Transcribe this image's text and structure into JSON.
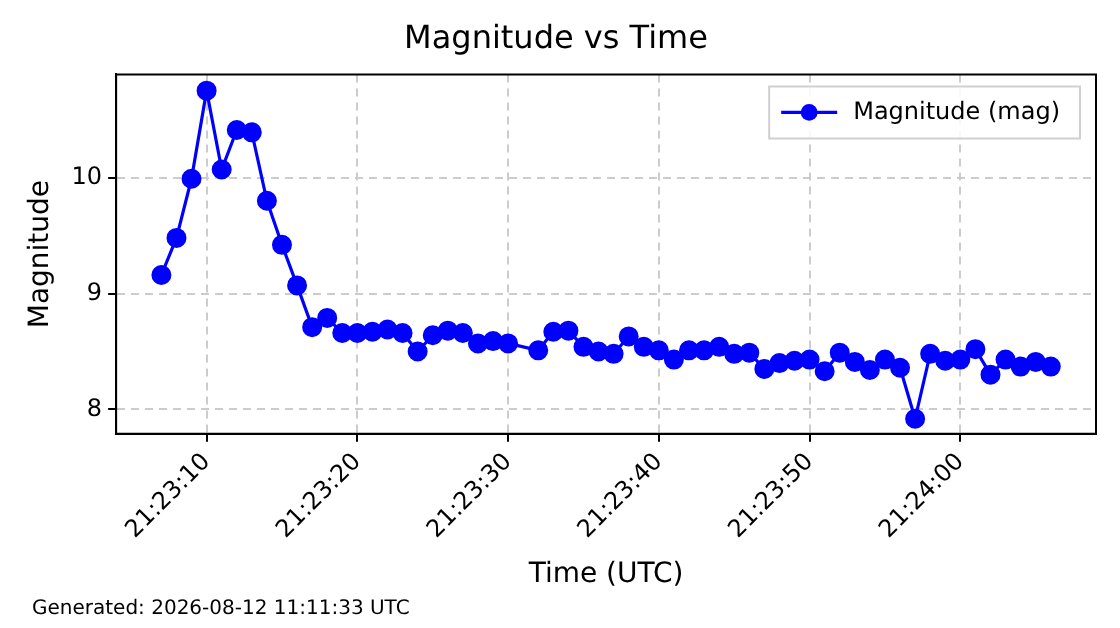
{
  "chart_data": {
    "type": "line",
    "title": "Magnitude vs Time",
    "xlabel": "Time (UTC)",
    "ylabel": "Magnitude",
    "annotations": [
      "Generated: 2026-08-12 11:11:33 UTC"
    ],
    "x": [
      21.385278,
      21.385556,
      21.385833,
      21.386111,
      21.386389,
      21.386667,
      21.386944,
      21.387222,
      21.3875,
      21.387778,
      21.388056,
      21.388333,
      21.388611,
      21.388889,
      21.389167,
      21.389444,
      21.389722,
      21.39,
      21.390278,
      21.390556,
      21.390833,
      21.391111,
      21.391389,
      21.391667,
      21.392222,
      21.3925,
      21.392778,
      21.393056,
      21.393333,
      21.393611,
      21.393889,
      21.394167,
      21.394444,
      21.394722,
      21.395,
      21.395278,
      21.395556,
      21.395833,
      21.396111,
      21.396389,
      21.396667,
      21.396944,
      21.397222,
      21.3975,
      21.397778,
      21.398056,
      21.398333,
      21.398611,
      21.398889,
      21.399167,
      21.399444,
      21.399722,
      21.4,
      21.400278,
      21.400556,
      21.400833,
      21.401111,
      21.401389,
      21.401667
    ],
    "series": [
      {
        "name": "Magnitude (mag)",
        "color": "#0000ff",
        "values": [
          9.16,
          9.48,
          9.99,
          10.75,
          10.07,
          10.41,
          10.39,
          9.8,
          9.42,
          9.07,
          8.71,
          8.79,
          8.66,
          8.66,
          8.67,
          8.69,
          8.66,
          8.5,
          8.64,
          8.68,
          8.66,
          8.57,
          8.59,
          8.57,
          8.51,
          8.67,
          8.68,
          8.54,
          8.5,
          8.48,
          8.63,
          8.54,
          8.51,
          8.43,
          8.51,
          8.51,
          8.54,
          8.48,
          8.49,
          8.35,
          8.4,
          8.42,
          8.43,
          8.33,
          8.49,
          8.41,
          8.34,
          8.43,
          8.36,
          7.92,
          8.48,
          8.42,
          8.43,
          8.52,
          8.3,
          8.43,
          8.37,
          8.41,
          8.37
        ]
      }
    ],
    "xlim": [
      21.384444,
      21.4025
    ],
    "xticks": [
      {
        "value": 21.386111,
        "label": "21:23:10"
      },
      {
        "value": 21.388889,
        "label": "21:23:20"
      },
      {
        "value": 21.391667,
        "label": "21:23:30"
      },
      {
        "value": 21.394444,
        "label": "21:23:40"
      },
      {
        "value": 21.397222,
        "label": "21:23:50"
      },
      {
        "value": 21.4,
        "label": "21:24:00"
      }
    ],
    "ylim": [
      7.79,
      10.89
    ],
    "yticks": [
      8,
      9,
      10
    ],
    "grid": true,
    "legend": "top right",
    "marker": "circle",
    "line_style": "solid"
  }
}
